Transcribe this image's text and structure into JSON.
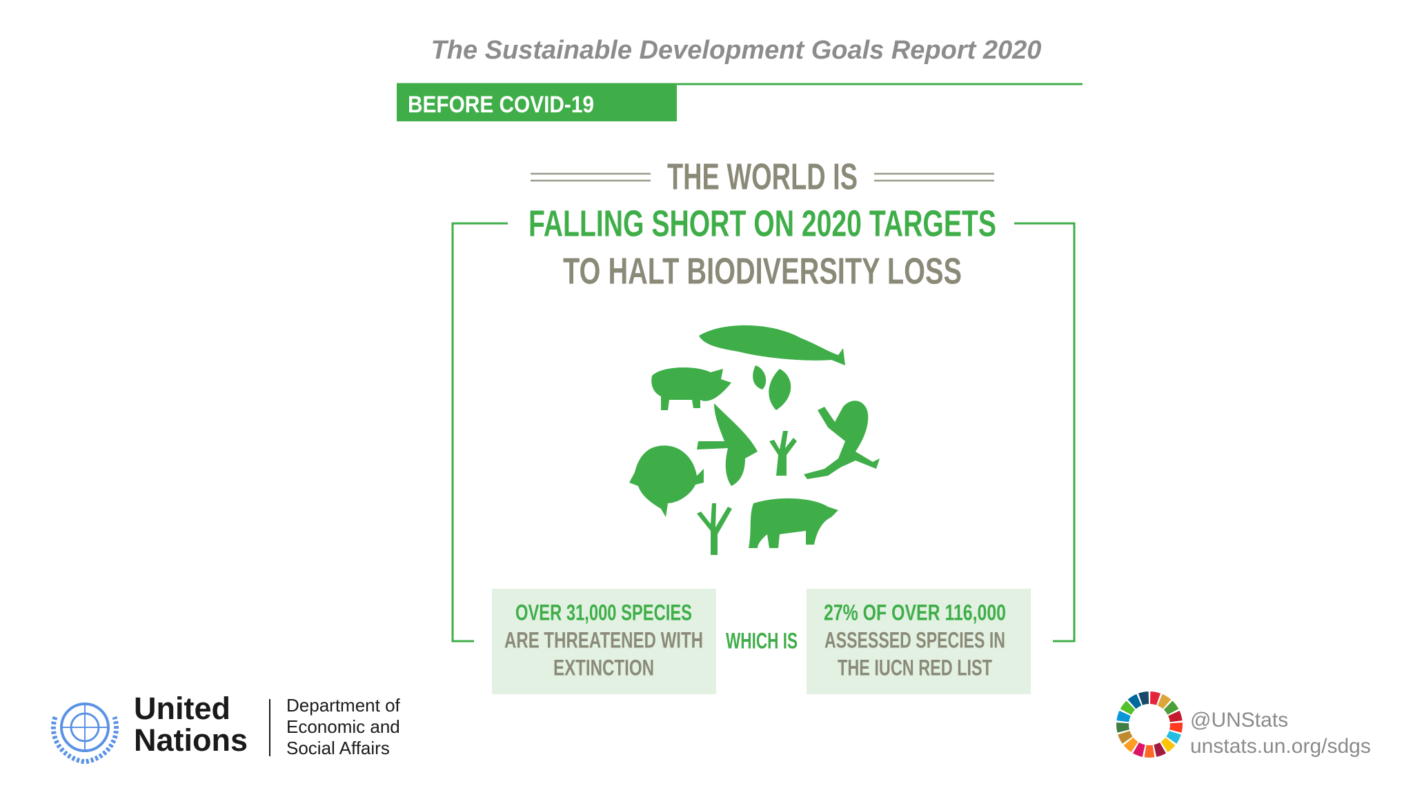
{
  "header": {
    "title": "The Sustainable Development Goals Report 2020"
  },
  "banner": {
    "label": "BEFORE COVID-19"
  },
  "headline": {
    "lines": [
      "THE WORLD IS",
      "FALLING SHORT ON 2020 TARGETS",
      "TO HALT BIODIVERSITY LOSS"
    ]
  },
  "stats": {
    "left": {
      "lines": [
        "OVER 31,000 SPECIES",
        "ARE THREATENED WITH",
        "EXTINCTION"
      ]
    },
    "connector": "WHICH IS",
    "right": {
      "lines": [
        "27% OF OVER 116,000",
        "ASSESSED SPECIES IN",
        "THE IUCN RED LIST"
      ]
    }
  },
  "footer": {
    "un": {
      "lines": [
        "United",
        "Nations"
      ]
    },
    "department": {
      "lines": [
        "Department of",
        "Economic and",
        "Social Affairs"
      ]
    },
    "social": {
      "handle": "@UNStats",
      "url": "unstats.un.org/sdgs"
    }
  }
}
